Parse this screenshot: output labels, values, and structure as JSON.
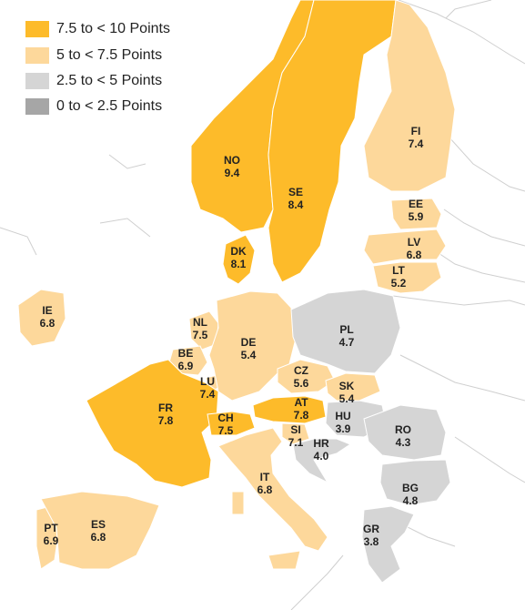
{
  "legend": {
    "items": [
      {
        "label": "7.5 to < 10 Points",
        "color": "#fdbb2a"
      },
      {
        "label": "5 to < 7.5 Points",
        "color": "#fdd89b"
      },
      {
        "label": "2.5 to < 5 Points",
        "color": "#d5d5d5"
      },
      {
        "label": "0 to < 2.5 Points",
        "color": "#a6a6a6"
      }
    ]
  },
  "countries": [
    {
      "code": "NO",
      "value": "9.4",
      "tier": 0
    },
    {
      "code": "SE",
      "value": "8.4",
      "tier": 0
    },
    {
      "code": "FI",
      "value": "7.4",
      "tier": 1
    },
    {
      "code": "EE",
      "value": "5.9",
      "tier": 1
    },
    {
      "code": "LV",
      "value": "6.8",
      "tier": 1
    },
    {
      "code": "LT",
      "value": "5.2",
      "tier": 1
    },
    {
      "code": "DK",
      "value": "8.1",
      "tier": 0
    },
    {
      "code": "IE",
      "value": "6.8",
      "tier": 1
    },
    {
      "code": "NL",
      "value": "7.5",
      "tier": 1
    },
    {
      "code": "BE",
      "value": "6.9",
      "tier": 1
    },
    {
      "code": "LU",
      "value": "7.4",
      "tier": 1
    },
    {
      "code": "DE",
      "value": "5.4",
      "tier": 1
    },
    {
      "code": "PL",
      "value": "4.7",
      "tier": 2
    },
    {
      "code": "CZ",
      "value": "5.6",
      "tier": 1
    },
    {
      "code": "SK",
      "value": "5.4",
      "tier": 1
    },
    {
      "code": "AT",
      "value": "7.8",
      "tier": 0
    },
    {
      "code": "HU",
      "value": "3.9",
      "tier": 2
    },
    {
      "code": "SI",
      "value": "7.1",
      "tier": 1
    },
    {
      "code": "HR",
      "value": "4.0",
      "tier": 2
    },
    {
      "code": "FR",
      "value": "7.8",
      "tier": 0
    },
    {
      "code": "CH",
      "value": "7.5",
      "tier": 0
    },
    {
      "code": "RO",
      "value": "4.3",
      "tier": 2
    },
    {
      "code": "BG",
      "value": "4.8",
      "tier": 2
    },
    {
      "code": "IT",
      "value": "6.8",
      "tier": 1
    },
    {
      "code": "PT",
      "value": "6.9",
      "tier": 1
    },
    {
      "code": "ES",
      "value": "6.8",
      "tier": 1
    },
    {
      "code": "GR",
      "value": "3.8",
      "tier": 2
    }
  ],
  "colors": {
    "land_border": "#ffffff",
    "non_eu_fill": "#ffffff",
    "non_eu_stroke": "#cfcfcf",
    "sea": "#ffffff"
  }
}
